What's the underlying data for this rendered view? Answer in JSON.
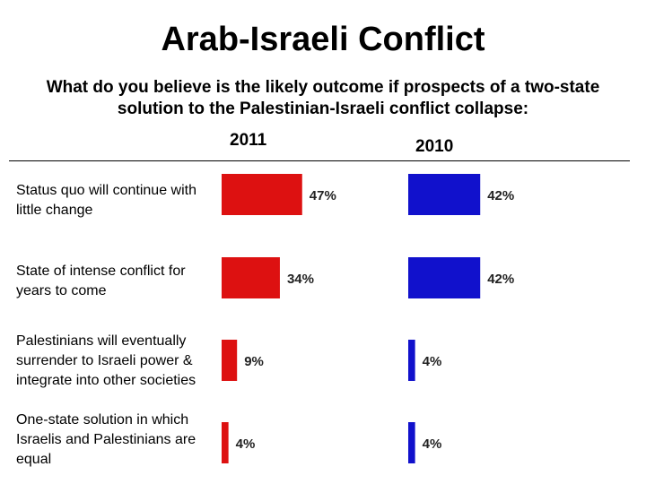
{
  "title": "Arab-Israeli Conflict",
  "subtitle": "What do you believe is the likely outcome if prospects of a two-state solution to the Palestinian-Israeli conflict collapse:",
  "colors": {
    "2011": "#dd1111",
    "2010": "#1111cc"
  },
  "chart_data": {
    "type": "bar",
    "orientation": "horizontal",
    "categories": [
      "Status quo will continue with little change",
      "State of intense conflict for years to come",
      "Palestinians will eventually surrender to Israeli power & integrate into other societies",
      "One-state solution in which Israelis and Palestinians are equal"
    ],
    "series": [
      {
        "name": "2011",
        "values": [
          47,
          34,
          9,
          4
        ],
        "labels": [
          "47%",
          "34%",
          "9%",
          "4%"
        ]
      },
      {
        "name": "2010",
        "values": [
          42,
          42,
          4,
          4
        ],
        "labels": [
          "42%",
          "42%",
          "4%",
          "4%"
        ]
      }
    ],
    "grid": false,
    "legend": "none"
  }
}
